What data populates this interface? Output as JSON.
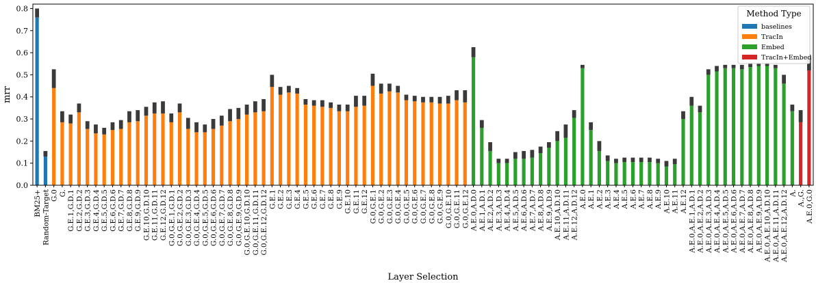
{
  "chart_data": {
    "type": "bar",
    "xlabel": "Layer Selection",
    "ylabel": "mrr",
    "ylim": [
      0,
      0.82
    ],
    "yticks": [
      "0.0",
      "0.1",
      "0.2",
      "0.3",
      "0.4",
      "0.5",
      "0.6",
      "0.7",
      "0.8"
    ],
    "ytick_values": [
      0,
      0.1,
      0.2,
      0.3,
      0.4,
      0.5,
      0.6,
      0.7,
      0.8
    ],
    "grid": false,
    "legend": {
      "title": "Method Type",
      "position": "top-right",
      "entries": [
        {
          "label": "baselines",
          "color": "#1f77b4"
        },
        {
          "label": "TracIn",
          "color": "#ff7f0e"
        },
        {
          "label": "Embed",
          "color": "#2ca02c"
        },
        {
          "label": "TracIn+Embed",
          "color": "#d62728"
        }
      ]
    },
    "series_colors": {
      "baselines": "#1f77b4",
      "TracIn": "#ff7f0e",
      "Embed": "#2ca02c",
      "TracIn+Embed": "#d62728"
    },
    "error_bar_color": "#3a3a3a",
    "bars": [
      {
        "label": "BM25+",
        "type": "baselines",
        "value": 0.76,
        "err": [
          0.76,
          0.8
        ]
      },
      {
        "label": "Random-Target",
        "type": "baselines",
        "value": 0.13,
        "err": [
          0.13,
          0.155
        ]
      },
      {
        "label": "G.0",
        "type": "TracIn",
        "value": 0.44,
        "err": [
          0.44,
          0.525
        ]
      },
      {
        "label": "G.",
        "type": "TracIn",
        "value": 0.285,
        "err": [
          0.285,
          0.335
        ]
      },
      {
        "label": "G.E.1,G.D.1",
        "type": "TracIn",
        "value": 0.28,
        "err": [
          0.28,
          0.32
        ]
      },
      {
        "label": "G.E.2,G.D.2",
        "type": "TracIn",
        "value": 0.33,
        "err": [
          0.33,
          0.37
        ]
      },
      {
        "label": "G.E.3,G.D.3",
        "type": "TracIn",
        "value": 0.255,
        "err": [
          0.255,
          0.29
        ]
      },
      {
        "label": "G.E.4,G.D.4",
        "type": "TracIn",
        "value": 0.235,
        "err": [
          0.235,
          0.275
        ]
      },
      {
        "label": "G.E.5,G.D.5",
        "type": "TracIn",
        "value": 0.23,
        "err": [
          0.23,
          0.26
        ]
      },
      {
        "label": "G.E.6,G.D.6",
        "type": "TracIn",
        "value": 0.25,
        "err": [
          0.25,
          0.285
        ]
      },
      {
        "label": "G.E.7,G.D.7",
        "type": "TracIn",
        "value": 0.255,
        "err": [
          0.255,
          0.295
        ]
      },
      {
        "label": "G.E.8,G.D.8",
        "type": "TracIn",
        "value": 0.285,
        "err": [
          0.285,
          0.335
        ]
      },
      {
        "label": "G.E.9,G.D.9",
        "type": "TracIn",
        "value": 0.29,
        "err": [
          0.29,
          0.34
        ]
      },
      {
        "label": "G.E.10,G.D.10",
        "type": "TracIn",
        "value": 0.315,
        "err": [
          0.315,
          0.355
        ]
      },
      {
        "label": "G.E.11,G.D.11",
        "type": "TracIn",
        "value": 0.325,
        "err": [
          0.325,
          0.375
        ]
      },
      {
        "label": "G.E.12,G.D.12",
        "type": "TracIn",
        "value": 0.325,
        "err": [
          0.325,
          0.38
        ]
      },
      {
        "label": "G.0,G.E.1,G.D.1",
        "type": "TracIn",
        "value": 0.285,
        "err": [
          0.285,
          0.325
        ]
      },
      {
        "label": "G.0,G.E.2,G.D.2",
        "type": "TracIn",
        "value": 0.33,
        "err": [
          0.33,
          0.37
        ]
      },
      {
        "label": "G.0,G.E.3,G.D.3",
        "type": "TracIn",
        "value": 0.255,
        "err": [
          0.255,
          0.305
        ]
      },
      {
        "label": "G.0,G.E.4,G.D.4",
        "type": "TracIn",
        "value": 0.24,
        "err": [
          0.24,
          0.285
        ]
      },
      {
        "label": "G.0,G.E.5,G.D.5",
        "type": "TracIn",
        "value": 0.24,
        "err": [
          0.24,
          0.275
        ]
      },
      {
        "label": "G.0,G.E.6,G.D.6",
        "type": "TracIn",
        "value": 0.255,
        "err": [
          0.255,
          0.3
        ]
      },
      {
        "label": "G.0,G.E.7,G.D.7",
        "type": "TracIn",
        "value": 0.27,
        "err": [
          0.27,
          0.315
        ]
      },
      {
        "label": "G.0,G.E.8,G.D.8",
        "type": "TracIn",
        "value": 0.29,
        "err": [
          0.29,
          0.345
        ]
      },
      {
        "label": "G.0,G.E.9,G.D.9",
        "type": "TracIn",
        "value": 0.3,
        "err": [
          0.3,
          0.35
        ]
      },
      {
        "label": "G.0,G.E.10,G.D.10",
        "type": "TracIn",
        "value": 0.32,
        "err": [
          0.32,
          0.365
        ]
      },
      {
        "label": "G.0,G.E.11,G.D.11",
        "type": "TracIn",
        "value": 0.33,
        "err": [
          0.33,
          0.38
        ]
      },
      {
        "label": "G.0,G.E.12,G.D.12",
        "type": "TracIn",
        "value": 0.335,
        "err": [
          0.335,
          0.39
        ]
      },
      {
        "label": "G.E.1",
        "type": "TracIn",
        "value": 0.445,
        "err": [
          0.445,
          0.5
        ]
      },
      {
        "label": "G.E.2",
        "type": "TracIn",
        "value": 0.41,
        "err": [
          0.41,
          0.445
        ]
      },
      {
        "label": "G.E.3",
        "type": "TracIn",
        "value": 0.42,
        "err": [
          0.42,
          0.45
        ]
      },
      {
        "label": "G.E.4",
        "type": "TracIn",
        "value": 0.415,
        "err": [
          0.415,
          0.44
        ]
      },
      {
        "label": "G.E.5",
        "type": "TracIn",
        "value": 0.365,
        "err": [
          0.365,
          0.39
        ]
      },
      {
        "label": "G.E.6",
        "type": "TracIn",
        "value": 0.36,
        "err": [
          0.36,
          0.385
        ]
      },
      {
        "label": "G.E.7",
        "type": "TracIn",
        "value": 0.355,
        "err": [
          0.355,
          0.385
        ]
      },
      {
        "label": "G.E.8",
        "type": "TracIn",
        "value": 0.35,
        "err": [
          0.35,
          0.375
        ]
      },
      {
        "label": "G.E.9",
        "type": "TracIn",
        "value": 0.335,
        "err": [
          0.335,
          0.365
        ]
      },
      {
        "label": "G.E.10",
        "type": "TracIn",
        "value": 0.335,
        "err": [
          0.335,
          0.365
        ]
      },
      {
        "label": "G.E.11",
        "type": "TracIn",
        "value": 0.355,
        "err": [
          0.355,
          0.405
        ]
      },
      {
        "label": "G.E.12",
        "type": "TracIn",
        "value": 0.36,
        "err": [
          0.36,
          0.405
        ]
      },
      {
        "label": "G.0,G.E.1",
        "type": "TracIn",
        "value": 0.45,
        "err": [
          0.45,
          0.505
        ]
      },
      {
        "label": "G.0,G.E.2",
        "type": "TracIn",
        "value": 0.415,
        "err": [
          0.415,
          0.46
        ]
      },
      {
        "label": "G.0,G.E.3",
        "type": "TracIn",
        "value": 0.425,
        "err": [
          0.425,
          0.46
        ]
      },
      {
        "label": "G.0,G.E.4",
        "type": "TracIn",
        "value": 0.42,
        "err": [
          0.42,
          0.45
        ]
      },
      {
        "label": "G.0,G.E.5",
        "type": "TracIn",
        "value": 0.385,
        "err": [
          0.385,
          0.41
        ]
      },
      {
        "label": "G.0,G.E.6",
        "type": "TracIn",
        "value": 0.38,
        "err": [
          0.38,
          0.405
        ]
      },
      {
        "label": "G.0,G.E.7",
        "type": "TracIn",
        "value": 0.375,
        "err": [
          0.375,
          0.4
        ]
      },
      {
        "label": "G.0,G.E.8",
        "type": "TracIn",
        "value": 0.375,
        "err": [
          0.375,
          0.4
        ]
      },
      {
        "label": "G.0,G.E.9",
        "type": "TracIn",
        "value": 0.37,
        "err": [
          0.37,
          0.4
        ]
      },
      {
        "label": "G.0,G.E.10",
        "type": "TracIn",
        "value": 0.37,
        "err": [
          0.37,
          0.405
        ]
      },
      {
        "label": "G.0,G.E.11",
        "type": "TracIn",
        "value": 0.385,
        "err": [
          0.385,
          0.43
        ]
      },
      {
        "label": "G.0,G.E.12",
        "type": "TracIn",
        "value": 0.375,
        "err": [
          0.375,
          0.43
        ]
      },
      {
        "label": "A.E.0,A.D.0",
        "type": "Embed",
        "value": 0.58,
        "err": [
          0.58,
          0.625
        ]
      },
      {
        "label": "A.E.1,A.D.1",
        "type": "Embed",
        "value": 0.26,
        "err": [
          0.26,
          0.295
        ]
      },
      {
        "label": "A.E.2,A.D.2",
        "type": "Embed",
        "value": 0.155,
        "err": [
          0.155,
          0.195
        ]
      },
      {
        "label": "A.E.3,A.D.3",
        "type": "Embed",
        "value": 0.1,
        "err": [
          0.1,
          0.12
        ]
      },
      {
        "label": "A.E.4,A.D.4",
        "type": "Embed",
        "value": 0.1,
        "err": [
          0.1,
          0.12
        ]
      },
      {
        "label": "A.E.5,A.D.5",
        "type": "Embed",
        "value": 0.12,
        "err": [
          0.12,
          0.15
        ]
      },
      {
        "label": "A.E.6,A.D.6",
        "type": "Embed",
        "value": 0.12,
        "err": [
          0.12,
          0.155
        ]
      },
      {
        "label": "A.E.7,A.D.7",
        "type": "Embed",
        "value": 0.125,
        "err": [
          0.125,
          0.16
        ]
      },
      {
        "label": "A.E.8,A.D.8",
        "type": "Embed",
        "value": 0.145,
        "err": [
          0.145,
          0.175
        ]
      },
      {
        "label": "A.E.9,A.D.9",
        "type": "Embed",
        "value": 0.17,
        "err": [
          0.17,
          0.195
        ]
      },
      {
        "label": "A.E.10,A.D.10",
        "type": "Embed",
        "value": 0.2,
        "err": [
          0.2,
          0.245
        ]
      },
      {
        "label": "A.E.11,A.D.11",
        "type": "Embed",
        "value": 0.215,
        "err": [
          0.215,
          0.275
        ]
      },
      {
        "label": "A.E.12,A.D.12",
        "type": "Embed",
        "value": 0.305,
        "err": [
          0.305,
          0.34
        ]
      },
      {
        "label": "A.E.0",
        "type": "Embed",
        "value": 0.53,
        "err": [
          0.53,
          0.545
        ]
      },
      {
        "label": "A.E.1",
        "type": "Embed",
        "value": 0.25,
        "err": [
          0.25,
          0.285
        ]
      },
      {
        "label": "A.E.2",
        "type": "Embed",
        "value": 0.155,
        "err": [
          0.155,
          0.2
        ]
      },
      {
        "label": "A.E.3",
        "type": "Embed",
        "value": 0.11,
        "err": [
          0.11,
          0.135
        ]
      },
      {
        "label": "A.E.4",
        "type": "Embed",
        "value": 0.1,
        "err": [
          0.1,
          0.12
        ]
      },
      {
        "label": "A.E.5",
        "type": "Embed",
        "value": 0.105,
        "err": [
          0.105,
          0.125
        ]
      },
      {
        "label": "A.E.6",
        "type": "Embed",
        "value": 0.105,
        "err": [
          0.105,
          0.125
        ]
      },
      {
        "label": "A.E.7",
        "type": "Embed",
        "value": 0.105,
        "err": [
          0.105,
          0.125
        ]
      },
      {
        "label": "A.E.8",
        "type": "Embed",
        "value": 0.105,
        "err": [
          0.105,
          0.125
        ]
      },
      {
        "label": "A.E.9",
        "type": "Embed",
        "value": 0.1,
        "err": [
          0.1,
          0.12
        ]
      },
      {
        "label": "A.E.10",
        "type": "Embed",
        "value": 0.085,
        "err": [
          0.085,
          0.11
        ]
      },
      {
        "label": "A.E.11",
        "type": "Embed",
        "value": 0.095,
        "err": [
          0.095,
          0.12
        ]
      },
      {
        "label": "A.E.12",
        "type": "Embed",
        "value": 0.3,
        "err": [
          0.3,
          0.335
        ]
      },
      {
        "label": "A.E.0,A.E.1,A.D.1",
        "type": "Embed",
        "value": 0.36,
        "err": [
          0.36,
          0.4
        ]
      },
      {
        "label": "A.E.0,A.E.2,A.D.2",
        "type": "Embed",
        "value": 0.33,
        "err": [
          0.33,
          0.36
        ]
      },
      {
        "label": "A.E.0,A.E.3,A.D.3",
        "type": "Embed",
        "value": 0.5,
        "err": [
          0.5,
          0.525
        ]
      },
      {
        "label": "A.E.0,A.E.4,A.D.4",
        "type": "Embed",
        "value": 0.515,
        "err": [
          0.515,
          0.54
        ]
      },
      {
        "label": "A.E.0,A.E.5,A.D.5",
        "type": "Embed",
        "value": 0.53,
        "err": [
          0.53,
          0.545
        ]
      },
      {
        "label": "A.E.0,A.E.6,A.D.6",
        "type": "Embed",
        "value": 0.53,
        "err": [
          0.53,
          0.545
        ]
      },
      {
        "label": "A.E.0,A.E.7,A.D.7",
        "type": "Embed",
        "value": 0.525,
        "err": [
          0.525,
          0.545
        ]
      },
      {
        "label": "A.E.0,A.E.8,A.D.8",
        "type": "Embed",
        "value": 0.535,
        "err": [
          0.535,
          0.555
        ]
      },
      {
        "label": "A.E.0,A.E.9,A.D.9",
        "type": "Embed",
        "value": 0.54,
        "err": [
          0.54,
          0.555
        ]
      },
      {
        "label": "A.E.0,A.E.10,A.D.10",
        "type": "Embed",
        "value": 0.54,
        "err": [
          0.54,
          0.555
        ]
      },
      {
        "label": "A.E.0,A.E.11,A.D.11",
        "type": "Embed",
        "value": 0.53,
        "err": [
          0.53,
          0.545
        ]
      },
      {
        "label": "A.E.0,A.E.12,A.D.12",
        "type": "Embed",
        "value": 0.46,
        "err": [
          0.46,
          0.5
        ]
      },
      {
        "label": "A.",
        "type": "Embed",
        "value": 0.335,
        "err": [
          0.335,
          0.365
        ]
      },
      {
        "label": "A.,G.",
        "type": "TracIn+Embed",
        "value": 0.285,
        "err": [
          0.285,
          0.34
        ]
      },
      {
        "label": "A.E.0,G.0",
        "type": "TracIn+Embed",
        "value": 0.52,
        "err": [
          0.52,
          0.585
        ]
      }
    ]
  }
}
